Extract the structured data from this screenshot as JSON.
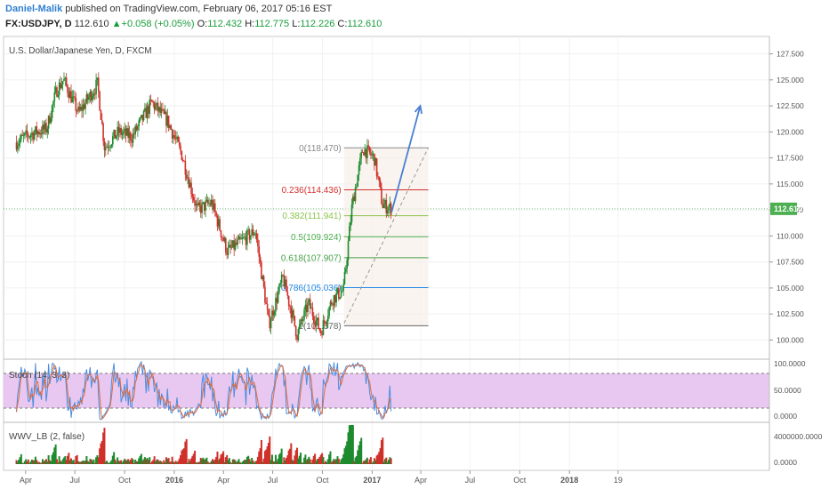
{
  "header": {
    "author": "Daniel-Malik",
    "published": "published on TradingView.com, February 06, 2017 05:16 EST",
    "symbol": "FX:USDJPY, D",
    "last": "112.610",
    "change": "+0.058 (+0.05%)",
    "open_label": "O:",
    "open": "112.432",
    "high_label": "H:",
    "high": "112.775",
    "low_label": "L:",
    "low": "112.226",
    "close_label": "C:",
    "close": "112.610"
  },
  "main_pane": {
    "title": "U.S. Dollar/Japanese Yen, D, FXCM",
    "price_tag": "112.610"
  },
  "stoch_pane": {
    "title": "Stoch (14, 3, 3)",
    "ticks": [
      "100.0000",
      "50.0000",
      "0.0000"
    ]
  },
  "wwv_pane": {
    "title": "WWV_LB (2, false)",
    "ticks": [
      "4000000.0000",
      "0.0000"
    ]
  },
  "colors": {
    "bull": "#1e8a2e",
    "bear": "#d0302a",
    "stoch_k": "#4a8de0",
    "stoch_d": "#e06a3a",
    "stoch_band": "#e8c8f0",
    "fib_0": "#888888",
    "fib_0236": "#d32f2f",
    "fib_0382": "#8bc34a",
    "fib_05": "#4caf50",
    "fib_0618": "#43a047",
    "fib_0786": "#1e88e5",
    "fib_1": "#666666",
    "arrow": "#4a7fd4"
  },
  "chart_data": {
    "type": "candlestick",
    "title": "U.S. Dollar/Japanese Yen, D, FXCM",
    "y_ticks": [
      "127.500",
      "125.000",
      "122.500",
      "120.000",
      "117.500",
      "115.000",
      "112.500",
      "110.000",
      "107.500",
      "105.000",
      "102.500",
      "100.000"
    ],
    "x_ticks": [
      "Apr",
      "Jul",
      "Oct",
      "2016",
      "Apr",
      "Jul",
      "Oct",
      "2017",
      "Apr",
      "Jul",
      "Oct",
      "2018",
      "19"
    ],
    "ylim": [
      98.5,
      129
    ],
    "last_price": 112.61,
    "price_path": [
      [
        "2015-03-15",
        119.0
      ],
      [
        "2015-04-10",
        119.8
      ],
      [
        "2015-05-10",
        120.3
      ],
      [
        "2015-05-28",
        124.0
      ],
      [
        "2015-06-10",
        125.0
      ],
      [
        "2015-07-08",
        121.8
      ],
      [
        "2015-08-12",
        124.6
      ],
      [
        "2015-08-25",
        118.5
      ],
      [
        "2015-09-20",
        120.0
      ],
      [
        "2015-10-15",
        119.5
      ],
      [
        "2015-11-20",
        122.8
      ],
      [
        "2015-12-20",
        121.0
      ],
      [
        "2016-01-15",
        117.8
      ],
      [
        "2016-02-12",
        112.5
      ],
      [
        "2016-03-10",
        113.2
      ],
      [
        "2016-04-08",
        108.5
      ],
      [
        "2016-05-05",
        109.5
      ],
      [
        "2016-05-30",
        110.5
      ],
      [
        "2016-06-24",
        101.5
      ],
      [
        "2016-07-20",
        106.0
      ],
      [
        "2016-08-15",
        100.5
      ],
      [
        "2016-09-05",
        103.5
      ],
      [
        "2016-09-28",
        100.8
      ],
      [
        "2016-10-20",
        104.0
      ],
      [
        "2016-11-09",
        104.8
      ],
      [
        "2016-11-25",
        113.0
      ],
      [
        "2016-12-15",
        118.4
      ],
      [
        "2017-01-05",
        117.5
      ],
      [
        "2017-01-20",
        113.0
      ],
      [
        "2017-02-06",
        112.6
      ]
    ],
    "fibonacci": [
      {
        "level": "0",
        "price": 118.47,
        "label": "0(118.470)"
      },
      {
        "level": "0.236",
        "price": 114.436,
        "label": "0.236(114.436)"
      },
      {
        "level": "0.382",
        "price": 111.941,
        "label": "0.382(111.941)"
      },
      {
        "level": "0.5",
        "price": 109.924,
        "label": "0.5(109.924)"
      },
      {
        "level": "0.618",
        "price": 107.907,
        "label": "0.618(107.907)"
      },
      {
        "level": "0.786",
        "price": 105.036,
        "label": "0.786(105.036)"
      },
      {
        "level": "1",
        "price": 101.378,
        "label": "1(101.378)"
      }
    ],
    "fib_start": "2016-11-10",
    "fib_end": "2017-04-15",
    "trend_line": {
      "from": [
        "2016-11-10",
        101.6
      ],
      "to": [
        "2017-04-15",
        118.5
      ]
    },
    "projection_arrow": {
      "from": [
        "2017-02-06",
        112.3
      ],
      "to": [
        "2017-03-31",
        122.5
      ]
    }
  }
}
